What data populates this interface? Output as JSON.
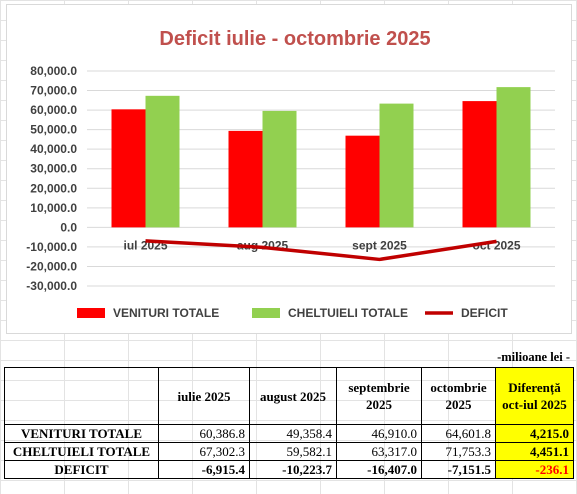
{
  "chart_data": {
    "type": "bar",
    "title": "Deficit iulie - octombrie 2025",
    "categories": [
      "iul 2025",
      "aug 2025",
      "sept 2025",
      "oct 2025"
    ],
    "series": [
      {
        "name": "VENITURI TOTALE",
        "kind": "bar",
        "color": "#ff0000",
        "values": [
          60386.8,
          49358.4,
          46910.0,
          64601.8
        ]
      },
      {
        "name": "CHELTUIELI TOTALE",
        "kind": "bar",
        "color": "#92d050",
        "values": [
          67302.3,
          59582.1,
          63317.0,
          71753.3
        ]
      },
      {
        "name": "DEFICIT",
        "kind": "line",
        "color": "#c00000",
        "values": [
          -6915.4,
          -10223.7,
          -16407.0,
          -7151.5
        ]
      }
    ],
    "ylim": [
      -30000,
      80000
    ],
    "yticks": [
      "80,000.0",
      "70,000.0",
      "60,000.0",
      "50,000.0",
      "40,000.0",
      "30,000.0",
      "20,000.0",
      "10,000.0",
      "0.0",
      "-10,000.0",
      "-20,000.0",
      "-30,000.0"
    ],
    "ytick_values": [
      80000,
      70000,
      60000,
      50000,
      40000,
      30000,
      20000,
      10000,
      0,
      -10000,
      -20000,
      -30000
    ],
    "grid": true,
    "legend": "bottom"
  },
  "table": {
    "units": "-milioane lei -",
    "headers": [
      "",
      "iulie 2025",
      "august 2025",
      "septembrie 2025",
      "octombrie 2025",
      "Diferență oct-iul 2025"
    ],
    "rows": [
      {
        "label": "VENITURI TOTALE",
        "values": [
          "60,386.8",
          "49,358.4",
          "46,910.0",
          "64,601.8"
        ],
        "diff": "4,215.0"
      },
      {
        "label": "CHELTUIELI TOTALE",
        "values": [
          "67,302.3",
          "59,582.1",
          "63,317.0",
          "71,753.3"
        ],
        "diff": "4,451.1"
      },
      {
        "label": "DEFICIT",
        "values": [
          "-6,915.4",
          "-10,223.7",
          "-16,407.0",
          "-7,151.5"
        ],
        "diff": "-236.1"
      }
    ]
  },
  "colors": {
    "title": "#c0504d",
    "highlight": "#ffff00",
    "negative_diff": "#ff0000"
  }
}
